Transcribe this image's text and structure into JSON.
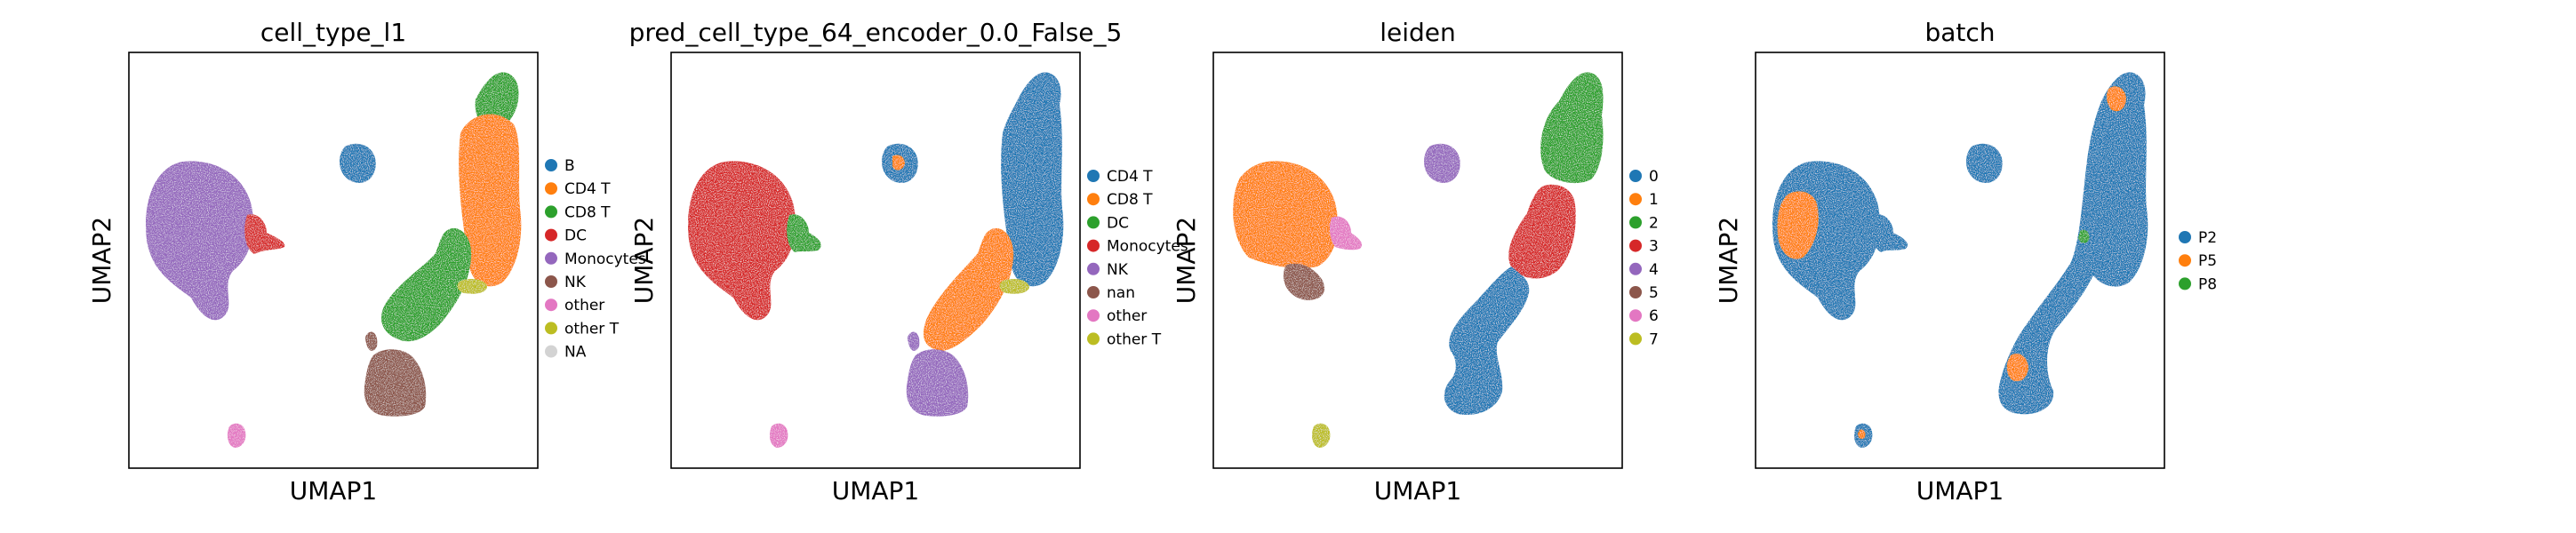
{
  "chart_data": [
    {
      "type": "scatter",
      "title": "cell_type_l1",
      "xlabel": "UMAP1",
      "ylabel": "UMAP2",
      "grid": false,
      "legend_placement": "right",
      "legend": [
        {
          "label": "B",
          "color": "#1f77b4"
        },
        {
          "label": "CD4 T",
          "color": "#ff7f0e"
        },
        {
          "label": "CD8 T",
          "color": "#2ca02c"
        },
        {
          "label": "DC",
          "color": "#d62728"
        },
        {
          "label": "Monocytes",
          "color": "#9467bd"
        },
        {
          "label": "NK",
          "color": "#8c564b"
        },
        {
          "label": "other",
          "color": "#e377c2"
        },
        {
          "label": "other T",
          "color": "#bcbd22"
        },
        {
          "label": "NA",
          "color": "#d3d3d3"
        }
      ]
    },
    {
      "type": "scatter",
      "title": "pred_cell_type_64_encoder_0.0_False_5",
      "xlabel": "UMAP1",
      "ylabel": "UMAP2",
      "grid": false,
      "legend_placement": "right",
      "legend": [
        {
          "label": "CD4 T",
          "color": "#1f77b4"
        },
        {
          "label": "CD8 T",
          "color": "#ff7f0e"
        },
        {
          "label": "DC",
          "color": "#2ca02c"
        },
        {
          "label": "Monocytes",
          "color": "#d62728"
        },
        {
          "label": "NK",
          "color": "#9467bd"
        },
        {
          "label": "nan",
          "color": "#8c564b"
        },
        {
          "label": "other",
          "color": "#e377c2"
        },
        {
          "label": "other T",
          "color": "#bcbd22"
        }
      ]
    },
    {
      "type": "scatter",
      "title": "leiden",
      "xlabel": "UMAP1",
      "ylabel": "UMAP2",
      "grid": false,
      "legend_placement": "right",
      "legend": [
        {
          "label": "0",
          "color": "#1f77b4"
        },
        {
          "label": "1",
          "color": "#ff7f0e"
        },
        {
          "label": "2",
          "color": "#2ca02c"
        },
        {
          "label": "3",
          "color": "#d62728"
        },
        {
          "label": "4",
          "color": "#9467bd"
        },
        {
          "label": "5",
          "color": "#8c564b"
        },
        {
          "label": "6",
          "color": "#e377c2"
        },
        {
          "label": "7",
          "color": "#bcbd22"
        }
      ]
    },
    {
      "type": "scatter",
      "title": "batch",
      "xlabel": "UMAP1",
      "ylabel": "UMAP2",
      "grid": false,
      "legend_placement": "right",
      "legend": [
        {
          "label": "P2",
          "color": "#1f77b4"
        },
        {
          "label": "P5",
          "color": "#ff7f0e"
        },
        {
          "label": "P8",
          "color": "#2ca02c"
        }
      ]
    }
  ]
}
